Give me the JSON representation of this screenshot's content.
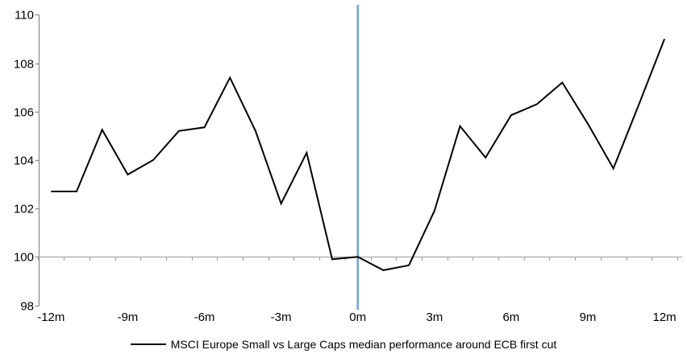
{
  "chart_data": {
    "type": "line",
    "title": "",
    "legend": "MSCI Europe Small vs Large Caps median performance around ECB first cut",
    "xlabel": "",
    "ylabel": "",
    "x": [
      -12,
      -11,
      -10,
      -9,
      -8,
      -7,
      -6,
      -5,
      -4,
      -3,
      -2,
      -1,
      0,
      1,
      2,
      3,
      4,
      5,
      6,
      7,
      8,
      9,
      10,
      11,
      12
    ],
    "x_tick_months": [
      -12,
      -9,
      -6,
      -3,
      0,
      3,
      6,
      9,
      12
    ],
    "x_tick_labels": [
      "-12m",
      "-9m",
      "-6m",
      "-3m",
      "0m",
      "3m",
      "6m",
      "9m",
      "12m"
    ],
    "y_ticks": [
      98,
      100,
      102,
      104,
      106,
      108,
      110
    ],
    "ylim": [
      98,
      110
    ],
    "grid": false,
    "legend_position": "bottom-center",
    "axis_color": "#909090",
    "baseline": {
      "y": 100,
      "color": "#A8A8A8"
    },
    "event_line": {
      "x": 0,
      "color": "#74A3D6"
    },
    "series": [
      {
        "name": "MSCI Europe Small vs Large Caps median performance around ECB first cut",
        "color": "#000000",
        "values": [
          102.7,
          102.7,
          105.25,
          103.4,
          104.0,
          105.2,
          105.35,
          107.4,
          105.2,
          102.2,
          104.3,
          99.9,
          100.0,
          99.45,
          99.65,
          101.9,
          105.4,
          104.1,
          105.85,
          106.3,
          107.2,
          105.5,
          103.65,
          106.3,
          109.0
        ]
      }
    ]
  }
}
